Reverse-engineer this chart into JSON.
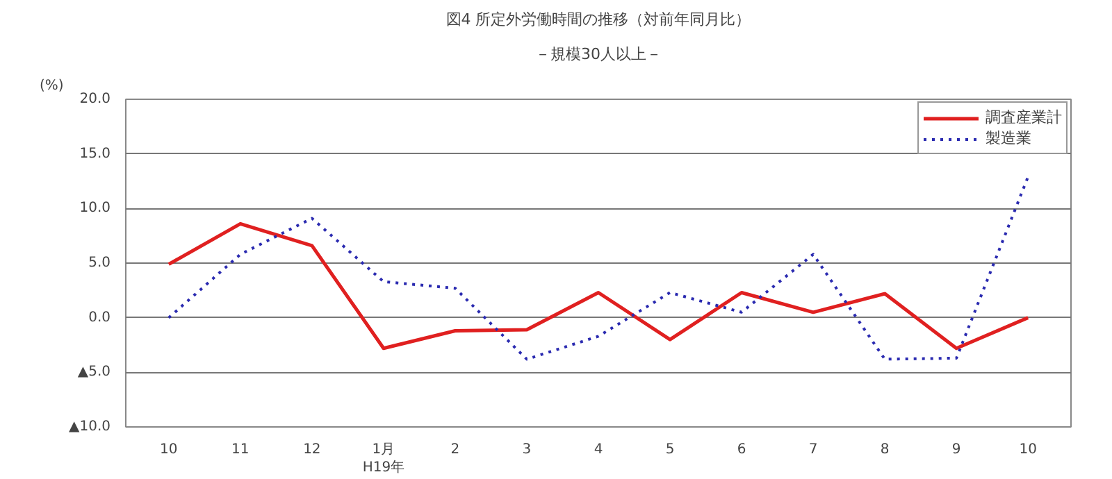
{
  "chart_data": {
    "type": "line",
    "title": "図4 所定外労働時間の推移（対前年同月比）",
    "subtitle": "－規模30人以上－",
    "ylabel": "(%)",
    "categories": [
      "10",
      "11",
      "12",
      "1月\nH19年",
      "2",
      "3",
      "4",
      "5",
      "6",
      "7",
      "8",
      "9",
      "10"
    ],
    "series": [
      {
        "name": "調査産業計",
        "color": "#e02020",
        "line_style": "solid",
        "values": [
          4.9,
          8.6,
          6.6,
          -2.8,
          -1.2,
          -1.1,
          2.3,
          -2.0,
          2.3,
          0.5,
          2.2,
          -2.8,
          0.0
        ]
      },
      {
        "name": "製造業",
        "color": "#2a2ab0",
        "line_style": "dotted",
        "values": [
          0.0,
          5.8,
          9.1,
          3.3,
          2.7,
          -3.8,
          -1.7,
          2.3,
          0.5,
          5.8,
          -3.8,
          -3.7,
          12.9
        ]
      }
    ],
    "ylim": [
      -10,
      20
    ],
    "yticks": [
      {
        "value": -10,
        "label": "▲10.0"
      },
      {
        "value": -5,
        "label": "▲5.0"
      },
      {
        "value": 0,
        "label": "0.0"
      },
      {
        "value": 5,
        "label": "5.0"
      },
      {
        "value": 10,
        "label": "10.0"
      },
      {
        "value": 15,
        "label": "15.0"
      },
      {
        "value": 20,
        "label": "20.0"
      }
    ],
    "grid": "y",
    "legend": "top right",
    "marker": "none"
  }
}
